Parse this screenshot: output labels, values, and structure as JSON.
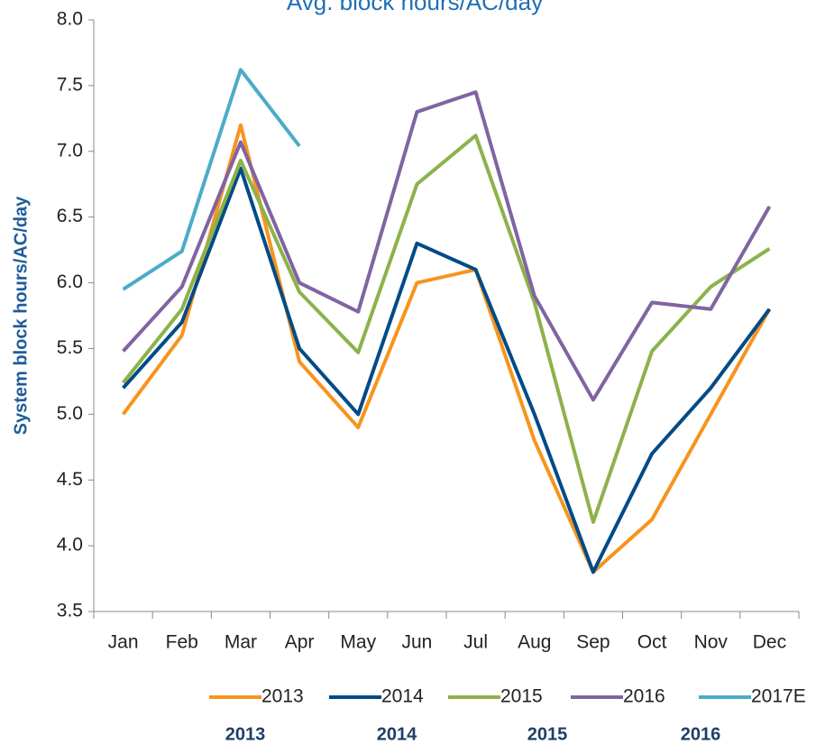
{
  "chart_data": {
    "type": "line",
    "title": "Avg. block hours/AC/day",
    "y_label": "System block hours/AC/day",
    "categories": [
      "Jan",
      "Feb",
      "Mar",
      "Apr",
      "May",
      "Jun",
      "Jul",
      "Aug",
      "Sep",
      "Oct",
      "Nov",
      "Dec"
    ],
    "series": [
      {
        "name": "2013",
        "color": "#f7941d",
        "values": [
          5.0,
          5.6,
          7.2,
          5.4,
          4.9,
          6.0,
          6.1,
          4.8,
          3.8,
          4.2,
          5.0,
          5.8
        ]
      },
      {
        "name": "2014",
        "color": "#004b87",
        "values": [
          5.2,
          5.7,
          6.87,
          5.5,
          5.0,
          6.3,
          6.1,
          5.0,
          3.8,
          4.7,
          5.2,
          5.8
        ]
      },
      {
        "name": "2015",
        "color": "#8cb24a",
        "values": [
          5.24,
          5.8,
          6.93,
          5.93,
          5.47,
          6.75,
          7.12,
          5.85,
          4.18,
          5.48,
          5.97,
          6.26
        ]
      },
      {
        "name": "2016",
        "color": "#8064a2",
        "values": [
          5.48,
          5.97,
          7.07,
          6.0,
          5.78,
          7.3,
          7.45,
          5.9,
          5.11,
          5.85,
          5.8,
          6.58
        ]
      },
      {
        "name": "2017E",
        "color": "#4bacc6",
        "values": [
          5.95,
          6.24,
          7.62,
          7.04,
          null,
          null,
          null,
          null,
          null,
          null,
          null,
          null
        ]
      }
    ],
    "ylim": [
      3.5,
      8.0
    ],
    "yticks": [
      {
        "value": 3.5,
        "label": "3.5"
      },
      {
        "value": 4.0,
        "label": "4.0"
      },
      {
        "value": 4.5,
        "label": "4.5"
      },
      {
        "value": 5.0,
        "label": "5.0"
      },
      {
        "value": 5.5,
        "label": "5.5"
      },
      {
        "value": 6.0,
        "label": "6.0"
      },
      {
        "value": 6.5,
        "label": "6.5"
      },
      {
        "value": 7.0,
        "label": "7.0"
      },
      {
        "value": 7.5,
        "label": "7.5"
      },
      {
        "value": 8.0,
        "label": "8.0"
      }
    ],
    "legend": "bottom",
    "annotations": [
      "2013",
      "2014",
      "2015",
      "2016"
    ]
  }
}
